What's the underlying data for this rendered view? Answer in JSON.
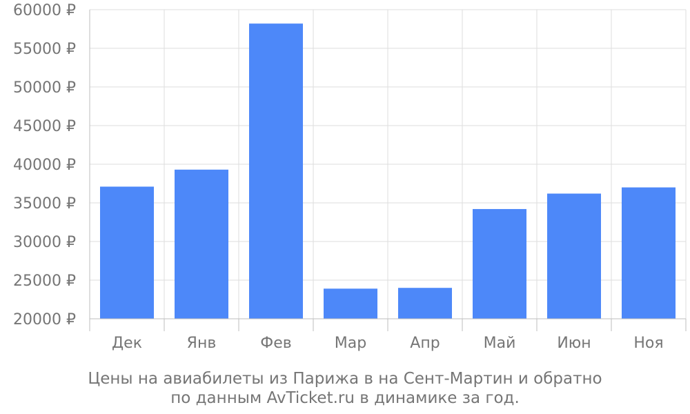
{
  "chart_data": {
    "type": "bar",
    "categories": [
      "Дек",
      "Янв",
      "Фев",
      "Мар",
      "Апр",
      "Май",
      "Июн",
      "Ноя"
    ],
    "values": [
      37100,
      39300,
      58200,
      23900,
      24000,
      34200,
      36200,
      37000
    ],
    "ylim": [
      20000,
      60000
    ],
    "yticks": [
      20000,
      25000,
      30000,
      35000,
      40000,
      45000,
      50000,
      55000,
      60000
    ],
    "ytick_labels": [
      "20000 ₽",
      "25000 ₽",
      "30000 ₽",
      "35000 ₽",
      "40000 ₽",
      "45000 ₽",
      "50000 ₽",
      "55000 ₽",
      "60000 ₽"
    ],
    "grid": true,
    "bar_color": "#4d88f9",
    "caption_lines": [
      "Цены на авиабилеты из Парижа в на Сент-Мартин и обратно",
      "по данным AvTicket.ru в динамике за год."
    ]
  }
}
